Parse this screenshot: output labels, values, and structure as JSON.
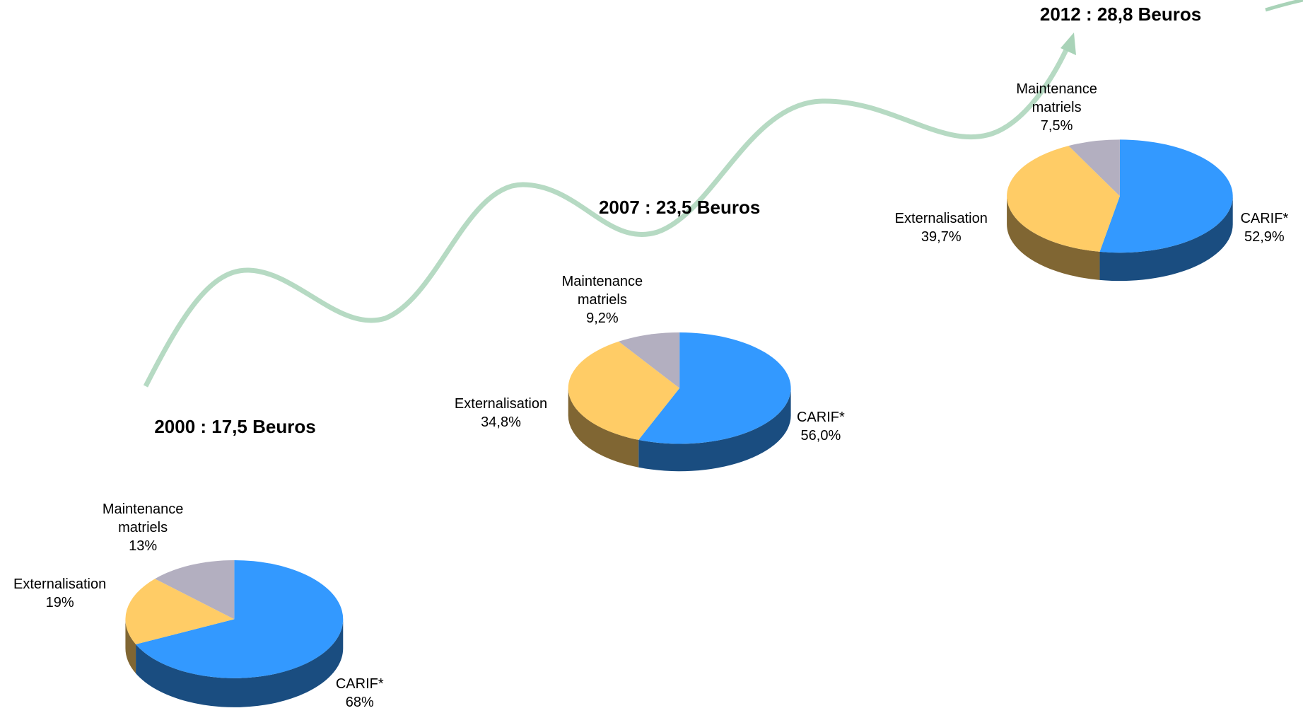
{
  "chart_data": [
    {
      "type": "pie",
      "title": "2000 : 17,5 Beuros",
      "categories": [
        "CARIF*",
        "Externalisation",
        "Maintenance matriels"
      ],
      "values": [
        68,
        19,
        13
      ],
      "value_labels": [
        "68%",
        "19%",
        "13%"
      ],
      "colors": [
        "#3399ff",
        "#ffcc66",
        "#b3afc0"
      ]
    },
    {
      "type": "pie",
      "title": "2007 : 23,5 Beuros",
      "categories": [
        "CARIF*",
        "Externalisation",
        "Maintenance matriels"
      ],
      "values": [
        56.0,
        34.8,
        9.2
      ],
      "value_labels": [
        "56,0%",
        "34,8%",
        "9,2%"
      ],
      "colors": [
        "#3399ff",
        "#ffcc66",
        "#b3afc0"
      ]
    },
    {
      "type": "pie",
      "title": "2012 : 28,8 Beuros",
      "categories": [
        "CARIF*",
        "Externalisation",
        "Maintenance matriels"
      ],
      "values": [
        52.9,
        39.7,
        7.5
      ],
      "value_labels": [
        "52,9%",
        "39,7%",
        "7,5%"
      ],
      "colors": [
        "#3399ff",
        "#ffcc66",
        "#b3afc0"
      ]
    }
  ]
}
